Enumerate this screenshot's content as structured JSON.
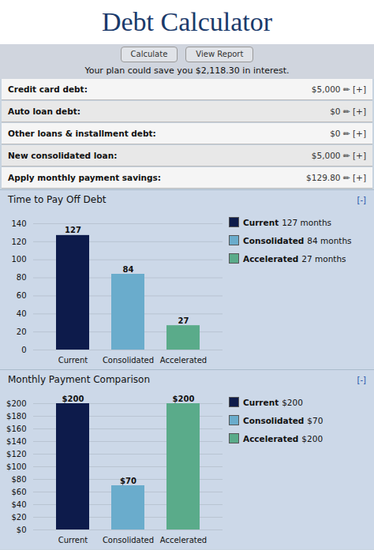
{
  "title": "Debt Calculator",
  "subtitle": "Your plan could save you $2,118.30 in interest.",
  "annotations": [
    {
      "text": "Calculate"
    },
    {
      "text": "View Report"
    },
    {
      "label": "Credit card debt:",
      "text": "$5,000 ✏ [+]"
    },
    {
      "label": "Auto loan debt:",
      "text": "$0 ✏ [+]"
    },
    {
      "label": "Other loans & installment debt:",
      "text": "$0 ✏ [+]"
    },
    {
      "label": "New consolidated loan:",
      "text": "$5,000 ✏ [+]"
    },
    {
      "label": "Apply monthly payment savings:",
      "text": "$129.80 ✏ [+]"
    }
  ],
  "chart_data": [
    {
      "type": "bar",
      "title": "Time to Pay Off Debt",
      "categories": [
        "Current",
        "Consolidated",
        "Accelerated"
      ],
      "values": [
        127,
        84,
        27
      ],
      "colors": [
        "#0d1b4b",
        "#6aaccc",
        "#5aab8a"
      ],
      "ylim": [
        0,
        140
      ],
      "yticks": [
        0,
        20,
        40,
        60,
        80,
        100,
        120,
        140
      ],
      "grid": true,
      "data_labels": true,
      "legend": "right",
      "annotations": [
        {
          "category": "Current",
          "text": "127 months"
        },
        {
          "category": "Consolidated",
          "text": "84 months"
        },
        {
          "category": "Accelerated",
          "text": "27 months"
        },
        {
          "text": "[-]"
        }
      ]
    },
    {
      "type": "bar",
      "title": "Monthly Payment Comparison",
      "categories": [
        "Current",
        "Consolidated",
        "Accelerated"
      ],
      "values": [
        200,
        70,
        200
      ],
      "value_labels": [
        "$200",
        "$70",
        "$200"
      ],
      "colors": [
        "#0d1b4b",
        "#6aaccc",
        "#5aab8a"
      ],
      "ylim": [
        0,
        200
      ],
      "yticks": [
        {
          "value": 0,
          "label": "$0"
        },
        {
          "value": 20,
          "label": "$20"
        },
        {
          "value": 40,
          "label": "$40"
        },
        {
          "value": 60,
          "label": "$60"
        },
        {
          "value": 80,
          "label": "$80"
        },
        {
          "value": 100,
          "label": "$100"
        },
        {
          "value": 120,
          "label": "$120"
        },
        {
          "value": 140,
          "label": "$140"
        },
        {
          "value": 160,
          "label": "$160"
        },
        {
          "value": 180,
          "label": "$180"
        },
        {
          "value": 200,
          "label": "$200"
        }
      ],
      "grid": true,
      "data_labels": true,
      "legend": "right",
      "annotations": [
        {
          "category": "Current",
          "text": "$200"
        },
        {
          "category": "Consolidated",
          "text": "$70"
        },
        {
          "category": "Accelerated",
          "text": "$200"
        },
        {
          "text": "[-]"
        }
      ]
    }
  ]
}
